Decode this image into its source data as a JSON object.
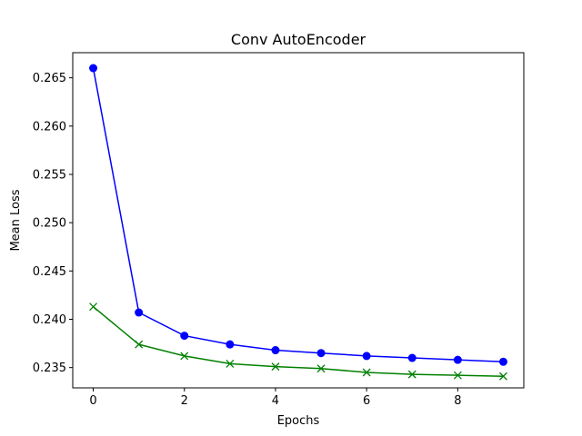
{
  "chart_data": {
    "type": "line",
    "title": "Conv AutoEncoder",
    "xlabel": "Epochs",
    "ylabel": "Mean Loss",
    "xlim": [
      -0.45,
      9.45
    ],
    "ylim": [
      0.2329,
      0.2676
    ],
    "xticks": [
      0,
      2,
      4,
      6,
      8
    ],
    "xtick_labels": [
      "0",
      "2",
      "4",
      "6",
      "8"
    ],
    "yticks": [
      0.235,
      0.24,
      0.245,
      0.25,
      0.255,
      0.26,
      0.265
    ],
    "ytick_labels": [
      "0.235",
      "0.240",
      "0.245",
      "0.250",
      "0.255",
      "0.260",
      "0.265"
    ],
    "grid": false,
    "legend": "none",
    "x": [
      0,
      1,
      2,
      3,
      4,
      5,
      6,
      7,
      8,
      9
    ],
    "series": [
      {
        "color": "#0000ff",
        "marker": "circle",
        "values": [
          0.266,
          0.2407,
          0.2383,
          0.2374,
          0.2368,
          0.2365,
          0.2362,
          0.236,
          0.2358,
          0.2356
        ]
      },
      {
        "color": "#008000",
        "marker": "x",
        "values": [
          0.2413,
          0.2374,
          0.2362,
          0.2354,
          0.2351,
          0.2349,
          0.2345,
          0.2343,
          0.2342,
          0.2341
        ]
      }
    ]
  }
}
